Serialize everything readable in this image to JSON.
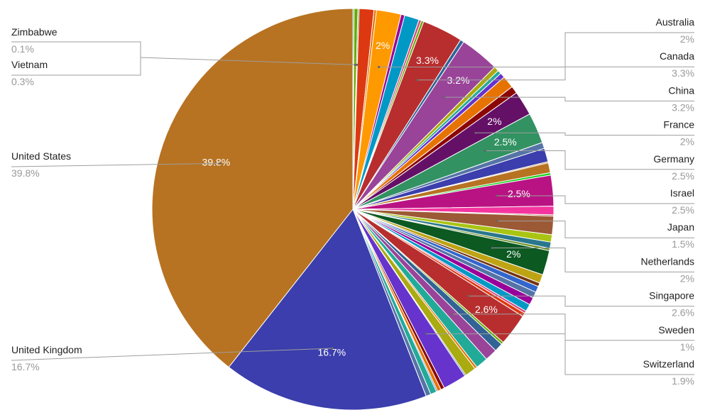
{
  "chart_data": {
    "type": "pie",
    "title": "",
    "legend": "none",
    "slices": [
      {
        "value": 0.1,
        "color": "#1b9e2a"
      },
      {
        "value": 0.3,
        "color": "#66aa00",
        "name": "Vietnam",
        "value_label": "0.3%"
      },
      {
        "value": 0.1,
        "color": "#1b9e2a",
        "name": "Zimbabwe",
        "value_label": "0.1%"
      },
      {
        "value": 1.2,
        "color": "#dc3912"
      },
      {
        "value": 0.2,
        "color": "#e67300"
      },
      {
        "value": 2.0,
        "color": "#ff9900",
        "name": "Australia",
        "value_label": "2%",
        "pct": "2%"
      },
      {
        "value": 0.3,
        "color": "#990099"
      },
      {
        "value": 1.2,
        "color": "#0099c6"
      },
      {
        "value": 0.2,
        "color": "#dd4477"
      },
      {
        "value": 0.2,
        "color": "#66aa00"
      },
      {
        "value": 3.3,
        "color": "#b82e2e",
        "name": "Canada",
        "value_label": "3.3%",
        "pct": "3.3%"
      },
      {
        "value": 0.3,
        "color": "#316395"
      },
      {
        "value": 3.2,
        "color": "#994499",
        "name": "China",
        "value_label": "3.2%",
        "pct": "3.2%"
      },
      {
        "value": 0.4,
        "color": "#aaaa11"
      },
      {
        "value": 0.3,
        "color": "#22aa99"
      },
      {
        "value": 0.4,
        "color": "#6633cc"
      },
      {
        "value": 1.0,
        "color": "#e67300"
      },
      {
        "value": 0.6,
        "color": "#8b0707"
      },
      {
        "value": 2.0,
        "color": "#651067",
        "name": "France",
        "value_label": "2%",
        "pct": "2%"
      },
      {
        "value": 2.5,
        "color": "#329262",
        "name": "Germany",
        "value_label": "2.5%",
        "pct": "2.5%"
      },
      {
        "value": 0.5,
        "color": "#5574a6"
      },
      {
        "value": 1.1,
        "color": "#3b3eac"
      },
      {
        "value": 0.1,
        "color": "#b77322"
      },
      {
        "value": 0.8,
        "color": "#b77322"
      },
      {
        "value": 0.2,
        "color": "#16d620"
      },
      {
        "value": 2.5,
        "color": "#b91383",
        "name": "Israel",
        "value_label": "2.5%",
        "pct": "2.5%"
      },
      {
        "value": 0.7,
        "color": "#f4359e"
      },
      {
        "value": 0.1,
        "color": "#9c5935"
      },
      {
        "value": 1.5,
        "color": "#9c5935",
        "name": "Japan",
        "value_label": "1.5%"
      },
      {
        "value": 0.6,
        "color": "#a9c413"
      },
      {
        "value": 0.5,
        "color": "#2a778d"
      },
      {
        "value": 0.2,
        "color": "#668d1c"
      },
      {
        "value": 2.0,
        "color": "#0c5922",
        "name": "Netherlands",
        "value_label": "2%",
        "pct": "2%"
      },
      {
        "value": 0.7,
        "color": "#bea413"
      },
      {
        "value": 0.3,
        "color": "#743411"
      },
      {
        "value": 0.5,
        "color": "#3366cc"
      },
      {
        "value": 0.5,
        "color": "#5574a6"
      },
      {
        "value": 0.6,
        "color": "#990099"
      },
      {
        "value": 0.6,
        "color": "#0099c6"
      },
      {
        "value": 0.2,
        "color": "#dd4477"
      },
      {
        "value": 0.3,
        "color": "#dc3912"
      },
      {
        "value": 2.6,
        "color": "#b82e2e",
        "name": "Singapore",
        "value_label": "2.6%",
        "pct": "2.6%"
      },
      {
        "value": 0.2,
        "color": "#66aa00"
      },
      {
        "value": 0.7,
        "color": "#316395"
      },
      {
        "value": 1.0,
        "color": "#994499",
        "name": "Sweden",
        "value_label": "1%"
      },
      {
        "value": 1.0,
        "color": "#22aa99"
      },
      {
        "value": 0.2,
        "color": "#e67300"
      },
      {
        "value": 0.9,
        "color": "#aaaa11"
      },
      {
        "value": 0.1,
        "color": "#316395"
      },
      {
        "value": 1.9,
        "color": "#6633cc",
        "name": "Switzerland",
        "value_label": "1.9%"
      },
      {
        "value": 0.3,
        "color": "#8b0707"
      },
      {
        "value": 0.3,
        "color": "#e67300"
      },
      {
        "value": 0.1,
        "color": "#3366cc"
      },
      {
        "value": 0.5,
        "color": "#22aa99"
      },
      {
        "value": 0.4,
        "color": "#5574a6"
      },
      {
        "value": 16.7,
        "color": "#3b3eac",
        "name": "United Kingdom",
        "value_label": "16.7%",
        "pct": "16.7%"
      },
      {
        "value": 39.8,
        "color": "#b77322",
        "name": "United States",
        "value_label": "39.8%",
        "pct": "39.8%"
      }
    ]
  }
}
